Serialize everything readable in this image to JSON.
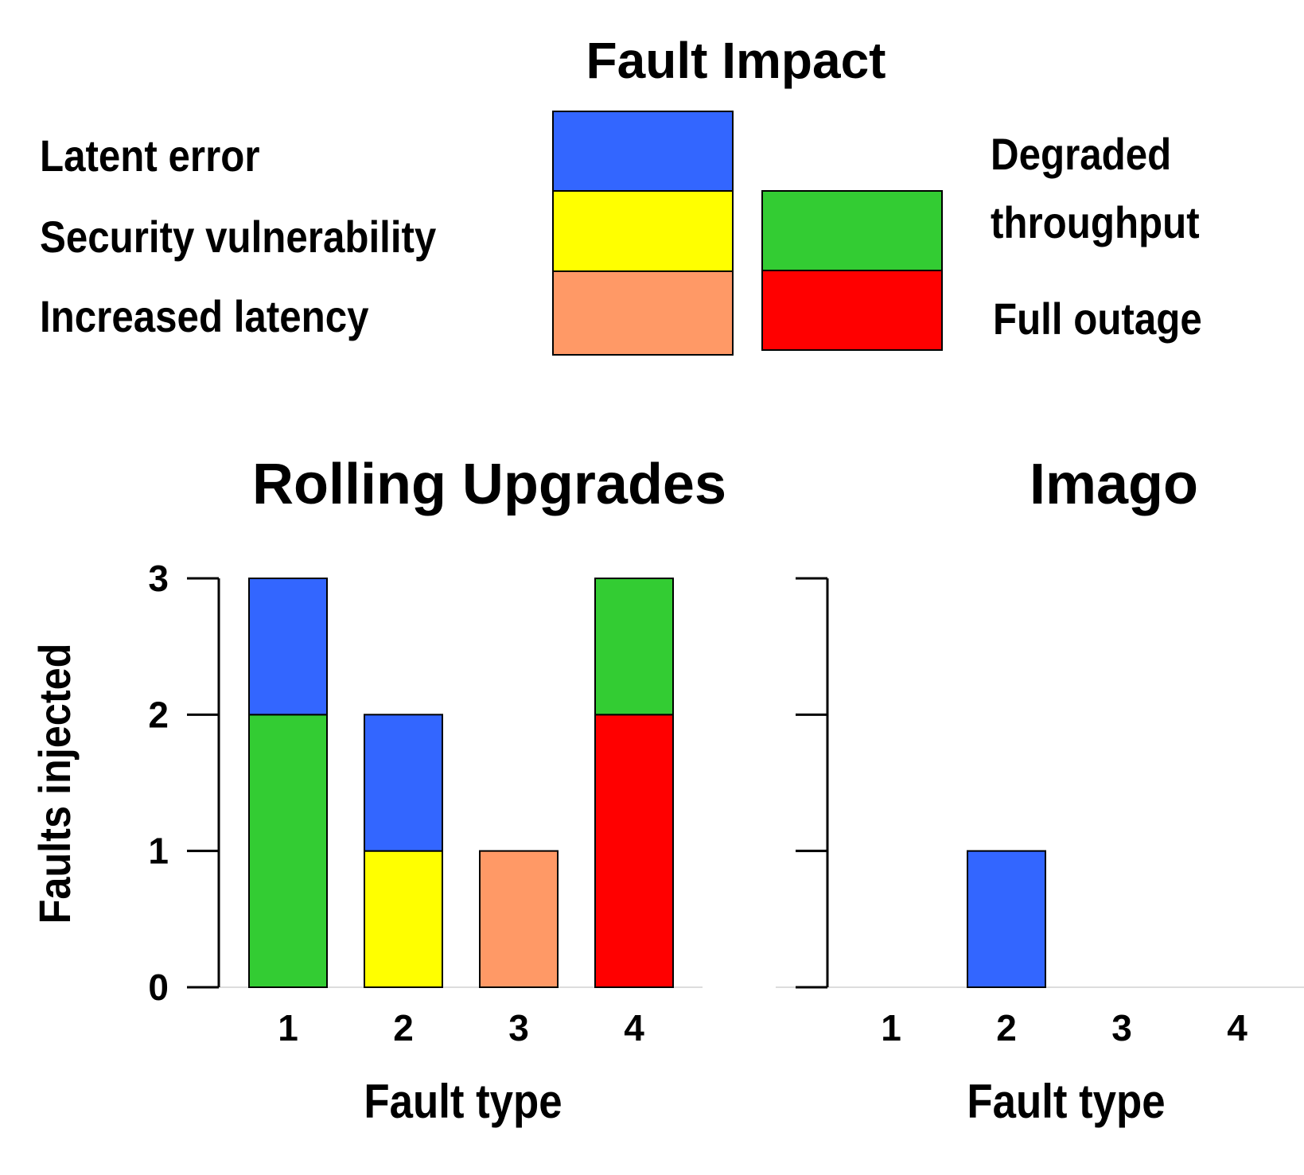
{
  "legend_title": "Fault Impact",
  "chart_data": [
    {
      "type": "bar",
      "stacked": true,
      "title": "Rolling Upgrades",
      "x_label": "Fault type",
      "y_label": "Faults injected",
      "categories": [
        "1",
        "2",
        "3",
        "4"
      ],
      "series": [
        {
          "name": "Full outage",
          "color": "#ff0000",
          "values": [
            0,
            0,
            0,
            2
          ]
        },
        {
          "name": "Degraded throughput",
          "color": "#33cc33",
          "values": [
            2,
            0,
            0,
            1
          ]
        },
        {
          "name": "Increased latency",
          "color": "#ff9966",
          "values": [
            0,
            0,
            1,
            0
          ]
        },
        {
          "name": "Security vulnerability",
          "color": "#ffff00",
          "values": [
            0,
            1,
            0,
            0
          ]
        },
        {
          "name": "Latent error",
          "color": "#3366ff",
          "values": [
            1,
            1,
            0,
            0
          ]
        }
      ],
      "ylim": [
        0,
        3
      ],
      "yticks": [
        0,
        1,
        2,
        3
      ]
    },
    {
      "type": "bar",
      "stacked": true,
      "title": "Imago",
      "x_label": "Fault type",
      "categories": [
        "1",
        "2",
        "3",
        "4"
      ],
      "series": [
        {
          "name": "Full outage",
          "color": "#ff0000",
          "values": [
            0,
            0,
            0,
            0
          ]
        },
        {
          "name": "Degraded throughput",
          "color": "#33cc33",
          "values": [
            0,
            0,
            0,
            0
          ]
        },
        {
          "name": "Increased latency",
          "color": "#ff9966",
          "values": [
            0,
            0,
            0,
            0
          ]
        },
        {
          "name": "Security vulnerability",
          "color": "#ffff00",
          "values": [
            0,
            0,
            0,
            0
          ]
        },
        {
          "name": "Latent error",
          "color": "#3366ff",
          "values": [
            0,
            1,
            0,
            0
          ]
        }
      ],
      "ylim": [
        0,
        3
      ],
      "yticks": [
        0,
        1,
        2,
        3
      ]
    }
  ]
}
